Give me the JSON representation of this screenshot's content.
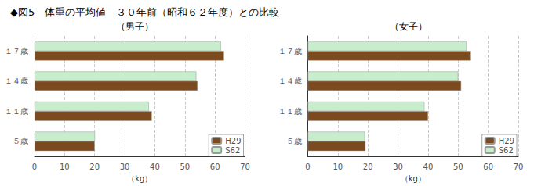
{
  "title": "◆図5　体重の平均値　３０年前（昭和６２年度）との比較",
  "chart_data": [
    {
      "type": "bar",
      "orientation": "horizontal",
      "title": "（男子）",
      "categories": [
        "５歳",
        "１１歳",
        "１４歳",
        "１７歳"
      ],
      "series": [
        {
          "name": "H29",
          "color": "#7B4A1E",
          "values": [
            20.0,
            39.0,
            54.2,
            63.0
          ]
        },
        {
          "name": "S62",
          "color": "#C8EDCC",
          "values": [
            20.1,
            38.0,
            53.8,
            62.0
          ]
        }
      ],
      "xlabel": "（kg）",
      "xlim": [
        0,
        70
      ],
      "xticks": [
        0,
        10,
        20,
        30,
        40,
        50,
        60,
        70
      ],
      "grid": true,
      "legend": "lower right"
    },
    {
      "type": "bar",
      "orientation": "horizontal",
      "title": "（女子）",
      "categories": [
        "５歳",
        "１１歳",
        "１４歳",
        "１７歳"
      ],
      "series": [
        {
          "name": "H29",
          "color": "#7B4A1E",
          "values": [
            19.2,
            40.0,
            51.0,
            54.0
          ]
        },
        {
          "name": "S62",
          "color": "#C8EDCC",
          "values": [
            19.0,
            38.8,
            50.0,
            52.8
          ]
        }
      ],
      "xlabel": "（kg）",
      "xlim": [
        0,
        70
      ],
      "xticks": [
        0,
        10,
        20,
        30,
        40,
        50,
        60,
        70
      ],
      "grid": true,
      "legend": "lower right"
    }
  ]
}
